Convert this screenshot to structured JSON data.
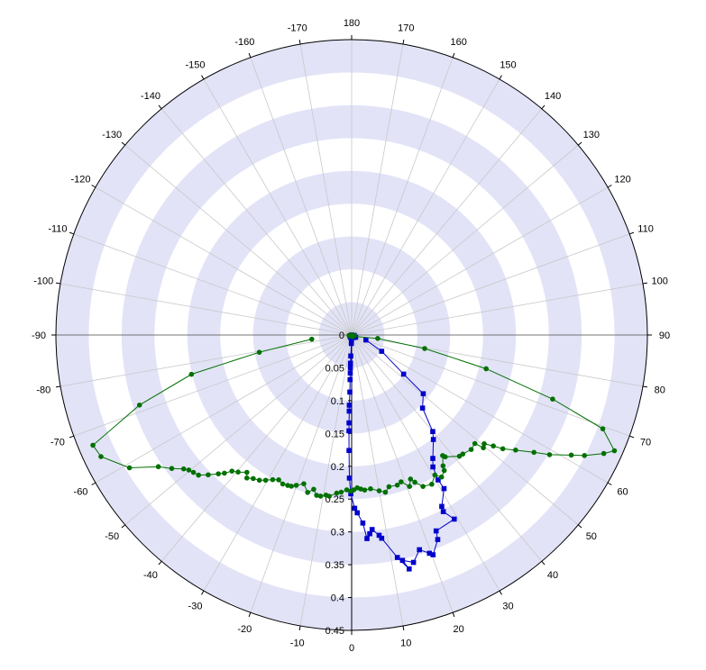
{
  "chart_data": {
    "type": "polar-line",
    "title": "",
    "angle_unit": "degrees",
    "angle_zero": "bottom",
    "angle_direction": "counter-clockwise",
    "angular_tick_step": 10,
    "angular_ticks": [
      "180",
      "170",
      "160",
      "150",
      "140",
      "130",
      "120",
      "110",
      "100",
      "90",
      "80",
      "70",
      "60",
      "50",
      "40",
      "30",
      "20",
      "10",
      "0",
      "-10",
      "-20",
      "-30",
      "-40",
      "-50",
      "-60",
      "-70",
      "-80",
      "-90",
      "-100",
      "-110",
      "-120",
      "-130",
      "-140",
      "-150",
      "-160",
      "-170"
    ],
    "radial_range": [
      0,
      0.45
    ],
    "radial_ticks": [
      "0",
      "0.05",
      "0.1",
      "0.15",
      "0.2",
      "0.25",
      "0.3",
      "0.35",
      "0.4",
      "0.45"
    ],
    "grid": true,
    "band_color": "#e2e3f7",
    "axis_color": "#000000",
    "grid_color": "#c8c8c8",
    "series": [
      {
        "color": "#0000cc",
        "marker": "square",
        "points": [
          [
            0,
            0.0
          ],
          [
            -3,
            0.003
          ],
          [
            -10,
            0.004
          ],
          [
            -20,
            0.004
          ],
          [
            -40,
            0.003
          ],
          [
            -60,
            0.003
          ],
          [
            40,
            0.005
          ],
          [
            60,
            0.007
          ],
          [
            80,
            0.004
          ],
          [
            -2,
            0.005
          ],
          [
            -2,
            0.009
          ],
          [
            -2,
            0.013
          ],
          [
            -2.3,
            0.032
          ],
          [
            -2.4,
            0.043
          ],
          [
            -2.2,
            0.05
          ],
          [
            -2.1,
            0.058
          ],
          [
            -2.0,
            0.068
          ],
          [
            -1.8,
            0.087
          ],
          [
            -1.9,
            0.107
          ],
          [
            -1.8,
            0.116
          ],
          [
            -1.7,
            0.134
          ],
          [
            -1.6,
            0.146
          ],
          [
            -1.3,
            0.176
          ],
          [
            -0.9,
            0.218
          ],
          [
            -0.3,
            0.242
          ],
          [
            1.0,
            0.264
          ],
          [
            1.8,
            0.271
          ],
          [
            3.4,
            0.287
          ],
          [
            4.3,
            0.311
          ],
          [
            5.2,
            0.304
          ],
          [
            6.0,
            0.298
          ],
          [
            7.8,
            0.308
          ],
          [
            8.4,
            0.313
          ],
          [
            11.6,
            0.346
          ],
          [
            13.8,
            0.367
          ],
          [
            12.7,
            0.352
          ],
          [
            15.2,
            0.359
          ],
          [
            17.5,
            0.343
          ],
          [
            19.6,
            0.353
          ],
          [
            20.3,
            0.357
          ],
          [
            22.8,
            0.338
          ],
          [
            23.3,
            0.325
          ],
          [
            29.1,
            0.321
          ],
          [
            27.4,
            0.303
          ],
          [
            27.7,
            0.295
          ],
          [
            31.0,
            0.273
          ],
          [
            30.8,
            0.257
          ],
          [
            31.6,
            0.236
          ],
          [
            33.3,
            0.225
          ],
          [
            38.0,
            0.202
          ],
          [
            40.0,
            0.192
          ],
          [
            44.1,
            0.155
          ],
          [
            50.6,
            0.141
          ],
          [
            53.0,
            0.099
          ],
          [
            61.5,
            0.052
          ],
          [
            70.7,
            0.023
          ]
        ]
      },
      {
        "color": "#007000",
        "marker": "circle",
        "points": [
          [
            0,
            0.0
          ],
          [
            10,
            0.002
          ],
          [
            30,
            0.003
          ],
          [
            60,
            0.003
          ],
          [
            80,
            0.004
          ],
          [
            -80,
            0.004
          ],
          [
            -60,
            0.003
          ],
          [
            82.5,
            0.04
          ],
          [
            79.5,
            0.113
          ],
          [
            75.9,
            0.211
          ],
          [
            72.3,
            0.321
          ],
          [
            69.5,
            0.408
          ],
          [
            66.2,
            0.437
          ],
          [
            64.8,
            0.424
          ],
          [
            62.6,
            0.399
          ],
          [
            61.3,
            0.381
          ],
          [
            58.8,
            0.352
          ],
          [
            57.2,
            0.33
          ],
          [
            54.9,
            0.305
          ],
          [
            53.0,
            0.288
          ],
          [
            51.9,
            0.274
          ],
          [
            50.6,
            0.261
          ],
          [
            49.4,
            0.264
          ],
          [
            48.6,
            0.25
          ],
          [
            46.2,
            0.252
          ],
          [
            43.0,
            0.248
          ],
          [
            41.6,
            0.247
          ],
          [
            37.5,
            0.234
          ],
          [
            37.0,
            0.23
          ],
          [
            34.9,
            0.243
          ],
          [
            34.3,
            0.25
          ],
          [
            32.3,
            0.256
          ],
          [
            30.7,
            0.248
          ],
          [
            28.2,
            0.258
          ],
          [
            25.2,
            0.255
          ],
          [
            23.2,
            0.244
          ],
          [
            22.2,
            0.237
          ],
          [
            20.9,
            0.247
          ],
          [
            18.6,
            0.236
          ],
          [
            16.9,
            0.239
          ],
          [
            13.8,
            0.238
          ],
          [
            12.1,
            0.245
          ],
          [
            10.0,
            0.241
          ],
          [
            7.0,
            0.236
          ],
          [
            4.8,
            0.237
          ],
          [
            3.4,
            0.235
          ],
          [
            2.1,
            0.233
          ],
          [
            0.8,
            0.236
          ],
          [
            -0.3,
            0.238
          ],
          [
            -1.8,
            0.236
          ],
          [
            -3.8,
            0.24
          ],
          [
            -5.4,
            0.242
          ],
          [
            -7.9,
            0.248
          ],
          [
            -9.1,
            0.247
          ],
          [
            -10.9,
            0.25
          ],
          [
            -12.3,
            0.25
          ],
          [
            -13.8,
            0.242
          ],
          [
            -15.6,
            0.249
          ],
          [
            -17.8,
            0.238
          ],
          [
            -20.2,
            0.244
          ],
          [
            -21.7,
            0.248
          ],
          [
            -23.0,
            0.249
          ],
          [
            -24.8,
            0.25
          ],
          [
            -26.7,
            0.247
          ],
          [
            -28.6,
            0.251
          ],
          [
            -30.6,
            0.257
          ],
          [
            -32.4,
            0.262
          ],
          [
            -34.4,
            0.265
          ],
          [
            -36.2,
            0.27
          ],
          [
            -37.3,
            0.263
          ],
          [
            -39.6,
            0.271
          ],
          [
            -41.3,
            0.276
          ],
          [
            -42.6,
            0.286
          ],
          [
            -43.8,
            0.293
          ],
          [
            -45.7,
            0.305
          ],
          [
            -47.5,
            0.316
          ],
          [
            -49.0,
            0.319
          ],
          [
            -50.3,
            0.322
          ],
          [
            -51.4,
            0.327
          ],
          [
            -53.4,
            0.341
          ],
          [
            -55.7,
            0.356
          ],
          [
            -59.1,
            0.394
          ],
          [
            -64.1,
            0.424
          ],
          [
            -66.9,
            0.428
          ],
          [
            -71.7,
            0.34
          ],
          [
            -76.2,
            0.251
          ],
          [
            -79.4,
            0.143
          ],
          [
            -84.0,
            0.061
          ]
        ]
      }
    ]
  }
}
